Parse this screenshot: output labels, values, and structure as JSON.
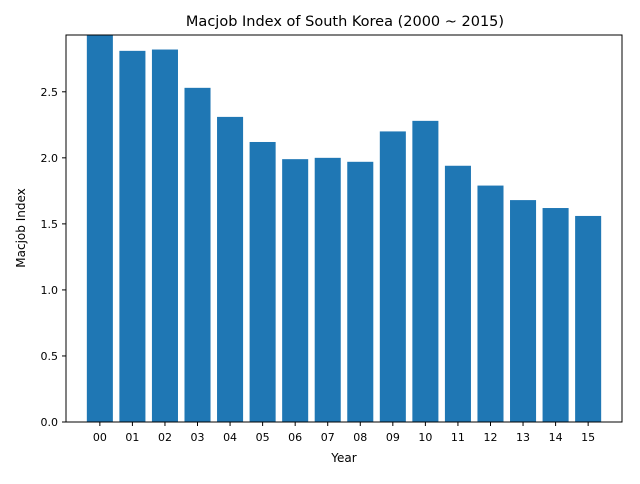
{
  "chart_data": {
    "type": "bar",
    "title": "Macjob Index of South Korea (2000 ~ 2015)",
    "xlabel": "Year",
    "ylabel": "Macjob Index",
    "categories": [
      "00",
      "01",
      "02",
      "03",
      "04",
      "05",
      "06",
      "07",
      "08",
      "09",
      "10",
      "11",
      "12",
      "13",
      "14",
      "15"
    ],
    "values": [
      2.93,
      2.81,
      2.82,
      2.53,
      2.31,
      2.12,
      1.99,
      2.0,
      1.97,
      2.2,
      2.28,
      1.94,
      1.79,
      1.68,
      1.62,
      1.56
    ],
    "ylim": [
      0,
      2.93
    ],
    "yticks": [
      "0.0",
      "0.5",
      "1.0",
      "1.5",
      "2.0",
      "2.5"
    ],
    "grid": false,
    "legend": "none",
    "bar_color": "#1f77b4"
  }
}
